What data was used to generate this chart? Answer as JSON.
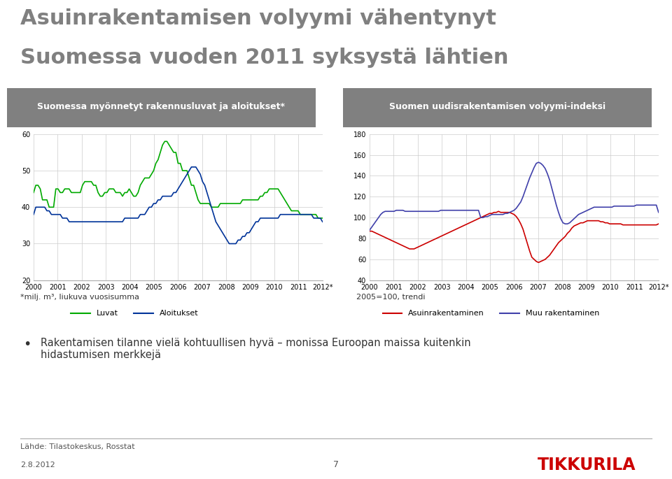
{
  "title_line1": "Asuinrakentamisen volyymi vähentynyt",
  "title_line2": "Suomessa vuoden 2011 syksystä lähtien",
  "subtitle_left": "Suomessa myönnetyt rakennusluvat ja aloitukset*",
  "subtitle_right": "Suomen uudisrakentamisen volyymi-indeksi",
  "footnote_left": "*milj. m³, liukuva vuosisumma",
  "footnote_right": "2005=100, trendi",
  "bullet_text": "Rakentamisen tilanne vielä kohtuullisen hyvä – monissa Euroopan maissa kuitenkin\nhidastumisen merkkejä",
  "source_text": "Lähde: Tilastokeskus, Rosstat",
  "date_text": "2.8.2012",
  "page_num": "7",
  "title_color": "#808080",
  "subtitle_bg_color": "#808080",
  "subtitle_text_color": "#ffffff",
  "left_chart": {
    "ylim": [
      20,
      60
    ],
    "yticks": [
      20,
      30,
      40,
      50,
      60
    ],
    "xlabels": [
      "2000",
      "2001",
      "2002",
      "2003",
      "2004",
      "2005",
      "2006",
      "2007",
      "2008",
      "2009",
      "2010",
      "2011",
      "2012*"
    ],
    "luvat_color": "#00aa00",
    "aloitukset_color": "#003399",
    "legend_luvat": "Luvat",
    "legend_aloitukset": "Aloitukset",
    "luvat": [
      44,
      46,
      46,
      45,
      42,
      42,
      42,
      40,
      40,
      40,
      45,
      45,
      44,
      44,
      45,
      45,
      45,
      44,
      44,
      44,
      44,
      44,
      46,
      47,
      47,
      47,
      47,
      46,
      46,
      44,
      43,
      43,
      44,
      44,
      45,
      45,
      45,
      44,
      44,
      44,
      43,
      44,
      44,
      45,
      44,
      43,
      43,
      44,
      46,
      47,
      48,
      48,
      48,
      49,
      50,
      52,
      53,
      55,
      57,
      58,
      58,
      57,
      56,
      55,
      55,
      52,
      52,
      50,
      50,
      50,
      48,
      46,
      46,
      44,
      42,
      41,
      41,
      41,
      41,
      41,
      40,
      40,
      40,
      40,
      41,
      41,
      41,
      41,
      41,
      41,
      41,
      41,
      41,
      41,
      42,
      42,
      42,
      42,
      42,
      42,
      42,
      42,
      43,
      43,
      44,
      44,
      45,
      45,
      45,
      45,
      45,
      44,
      43,
      42,
      41,
      40,
      39,
      39,
      39,
      39,
      38,
      38,
      38,
      38,
      38,
      38,
      38,
      38,
      37,
      37,
      37
    ],
    "aloitukset": [
      38,
      40,
      40,
      40,
      40,
      40,
      39,
      39,
      38,
      38,
      38,
      38,
      38,
      37,
      37,
      37,
      36,
      36,
      36,
      36,
      36,
      36,
      36,
      36,
      36,
      36,
      36,
      36,
      36,
      36,
      36,
      36,
      36,
      36,
      36,
      36,
      36,
      36,
      36,
      36,
      36,
      37,
      37,
      37,
      37,
      37,
      37,
      37,
      38,
      38,
      38,
      39,
      40,
      40,
      41,
      41,
      42,
      42,
      43,
      43,
      43,
      43,
      43,
      44,
      44,
      45,
      46,
      47,
      48,
      49,
      50,
      51,
      51,
      51,
      50,
      49,
      47,
      46,
      44,
      42,
      40,
      38,
      36,
      35,
      34,
      33,
      32,
      31,
      30,
      30,
      30,
      30,
      31,
      31,
      32,
      32,
      33,
      33,
      34,
      35,
      36,
      36,
      37,
      37,
      37,
      37,
      37,
      37,
      37,
      37,
      37,
      38,
      38,
      38,
      38,
      38,
      38,
      38,
      38,
      38,
      38,
      38,
      38,
      38,
      38,
      38,
      37,
      37,
      37,
      37,
      36
    ]
  },
  "right_chart": {
    "ylim": [
      40,
      180
    ],
    "yticks": [
      40,
      60,
      80,
      100,
      120,
      140,
      160,
      180
    ],
    "xlabels": [
      "2000",
      "2001",
      "2002",
      "2003",
      "2004",
      "2005",
      "2006",
      "2007",
      "2008",
      "2009",
      "2010",
      "2011",
      "2012*"
    ],
    "asuinrakentaminen_color": "#cc0000",
    "muurakentaminen_color": "#4040aa",
    "legend_asuin": "Asuinrakentaminen",
    "legend_muu": "Muu rakentaminen",
    "asuinrakentaminen": [
      87,
      87,
      86,
      85,
      84,
      83,
      82,
      81,
      80,
      79,
      78,
      77,
      76,
      75,
      74,
      73,
      72,
      71,
      70,
      70,
      70,
      71,
      72,
      73,
      74,
      75,
      76,
      77,
      78,
      79,
      80,
      81,
      82,
      83,
      84,
      85,
      86,
      87,
      88,
      89,
      90,
      91,
      92,
      93,
      94,
      95,
      96,
      97,
      98,
      99,
      100,
      101,
      102,
      103,
      104,
      104,
      105,
      105,
      106,
      105,
      105,
      105,
      105,
      105,
      104,
      103,
      101,
      98,
      94,
      89,
      82,
      75,
      68,
      62,
      60,
      58,
      57,
      58,
      59,
      60,
      62,
      64,
      67,
      70,
      73,
      76,
      78,
      80,
      82,
      85,
      87,
      90,
      92,
      93,
      94,
      95,
      95,
      96,
      97,
      97,
      97,
      97,
      97,
      97,
      96,
      96,
      95,
      95,
      94,
      94,
      94,
      94,
      94,
      94,
      93,
      93,
      93,
      93,
      93,
      93,
      93,
      93,
      93,
      93,
      93,
      93,
      93,
      93,
      93,
      93,
      94
    ],
    "muurakentaminen": [
      88,
      91,
      94,
      97,
      100,
      103,
      105,
      106,
      106,
      106,
      106,
      106,
      107,
      107,
      107,
      107,
      106,
      106,
      106,
      106,
      106,
      106,
      106,
      106,
      106,
      106,
      106,
      106,
      106,
      106,
      106,
      106,
      107,
      107,
      107,
      107,
      107,
      107,
      107,
      107,
      107,
      107,
      107,
      107,
      107,
      107,
      107,
      107,
      107,
      107,
      100,
      100,
      101,
      101,
      102,
      103,
      103,
      103,
      103,
      103,
      103,
      104,
      104,
      105,
      106,
      107,
      109,
      112,
      115,
      120,
      126,
      132,
      138,
      143,
      148,
      152,
      153,
      152,
      150,
      147,
      142,
      136,
      128,
      120,
      112,
      105,
      99,
      95,
      94,
      94,
      95,
      97,
      99,
      101,
      103,
      104,
      105,
      106,
      107,
      108,
      109,
      110,
      110,
      110,
      110,
      110,
      110,
      110,
      110,
      110,
      111,
      111,
      111,
      111,
      111,
      111,
      111,
      111,
      111,
      111,
      112,
      112,
      112,
      112,
      112,
      112,
      112,
      112,
      112,
      112,
      105
    ]
  },
  "tikkurila_color": "#cc0000",
  "background_color": "#ffffff",
  "grid_color": "#cccccc"
}
